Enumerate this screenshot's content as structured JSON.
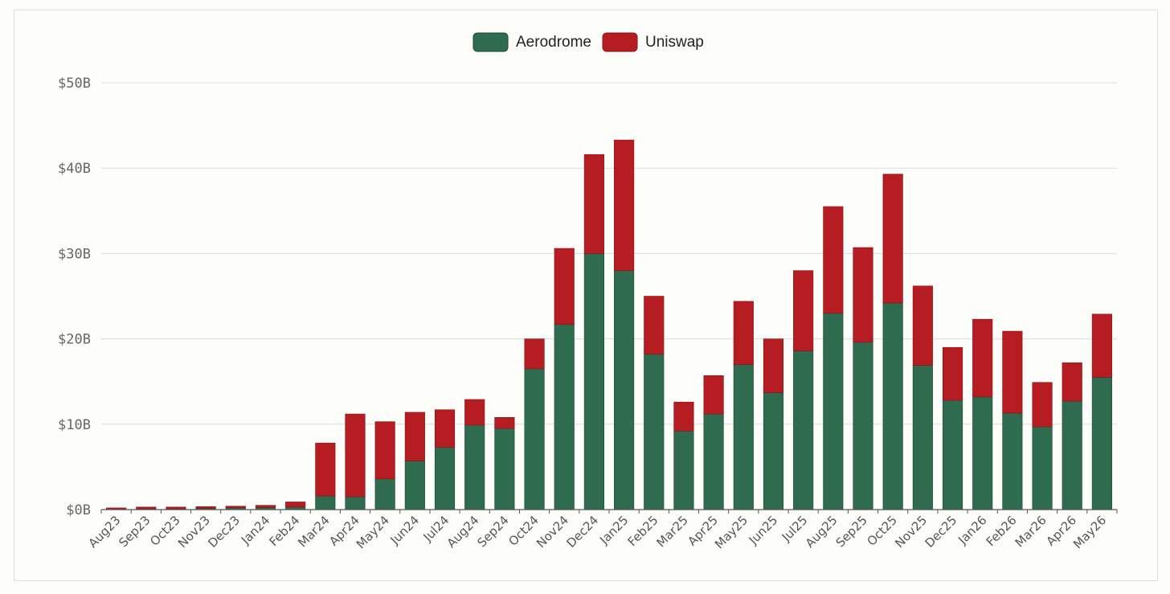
{
  "chart_data": {
    "type": "bar",
    "stacked": true,
    "legend_position": "top-center",
    "grid": true,
    "ylim": [
      0,
      50
    ],
    "y_ticks": [
      "$0B",
      "$10B",
      "$20B",
      "$30B",
      "$40B",
      "$50B"
    ],
    "categories": [
      "Aug23",
      "Sep23",
      "Oct23",
      "Nov23",
      "Dec23",
      "Jan24",
      "Feb24",
      "Mar24",
      "Apr24",
      "May24",
      "Jun24",
      "Jul24",
      "Aug24",
      "Sep24",
      "Oct24",
      "Nov24",
      "Dec24",
      "Jan25",
      "Feb25",
      "Mar25",
      "Apr25",
      "May25",
      "Jun25",
      "Jul25",
      "Aug25",
      "Sep25",
      "Oct25",
      "Nov25",
      "Dec25",
      "Jan26",
      "Feb26",
      "Mar26",
      "Apr26",
      "May26"
    ],
    "series": [
      {
        "name": "Aerodrome",
        "color": "#2e6b4f",
        "values": [
          0.05,
          0.1,
          0.1,
          0.15,
          0.2,
          0.25,
          0.3,
          1.6,
          1.5,
          3.6,
          5.7,
          7.3,
          9.9,
          9.5,
          16.5,
          21.7,
          30.0,
          28.0,
          18.2,
          9.2,
          11.2,
          17.0,
          13.7,
          18.6,
          23.0,
          19.6,
          24.2,
          16.9,
          12.8,
          13.2,
          11.3,
          9.7,
          12.7,
          15.5
        ]
      },
      {
        "name": "Uniswap",
        "color": "#b51d22",
        "values": [
          0.15,
          0.2,
          0.2,
          0.2,
          0.2,
          0.25,
          0.6,
          6.2,
          9.7,
          6.7,
          5.7,
          4.4,
          3.0,
          1.3,
          3.5,
          8.9,
          11.6,
          15.3,
          6.8,
          3.4,
          4.5,
          7.4,
          6.3,
          9.4,
          12.5,
          11.1,
          15.1,
          9.3,
          6.2,
          9.1,
          9.6,
          5.2,
          4.5,
          7.4
        ]
      }
    ]
  }
}
